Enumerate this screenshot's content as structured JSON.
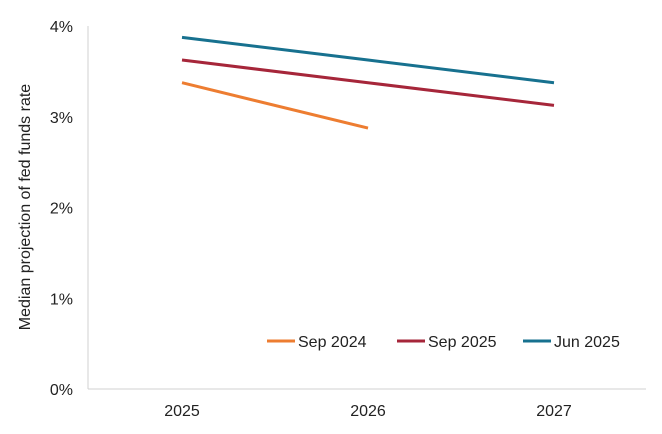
{
  "chart_data": {
    "type": "line",
    "title": "",
    "xlabel": "",
    "ylabel": "Median projection of fed funds rate",
    "x": [
      "2025",
      "2026",
      "2027"
    ],
    "ylim": [
      0,
      4
    ],
    "yticks": [
      "0%",
      "1%",
      "2%",
      "3%",
      "4%"
    ],
    "grid": false,
    "legend_position": "bottom-right",
    "series": [
      {
        "name": "Sep 2024",
        "color": "#ED7D31",
        "values": [
          3.375,
          2.875,
          null
        ]
      },
      {
        "name": "Sep 2025",
        "color": "#A6263A",
        "values": [
          3.625,
          3.375,
          3.125
        ]
      },
      {
        "name": "Jun 2025",
        "color": "#17718F",
        "values": [
          3.875,
          3.625,
          3.375
        ]
      }
    ]
  }
}
